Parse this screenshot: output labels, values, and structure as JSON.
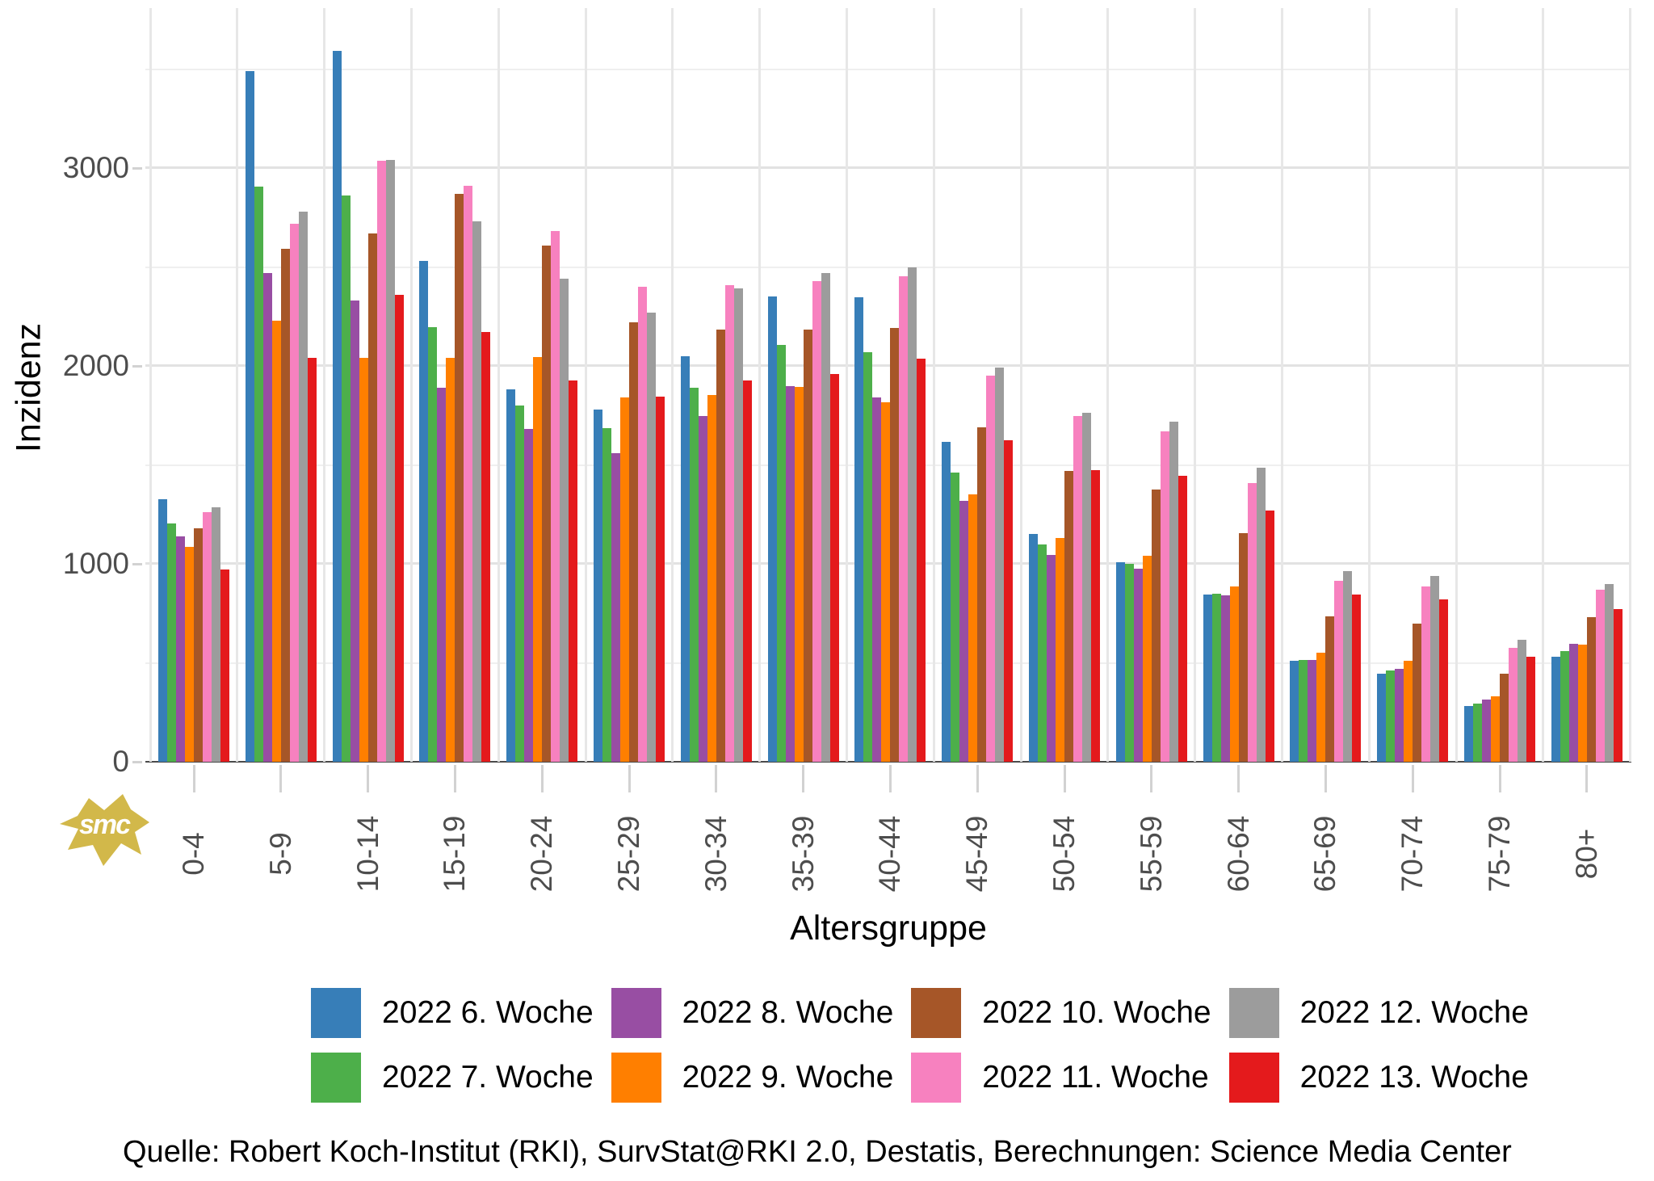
{
  "chart_data": {
    "type": "bar",
    "title": "",
    "xlabel": "Altersgruppe",
    "ylabel": "Inzidenz",
    "ylim": [
      0,
      3800
    ],
    "y_ticks": [
      0,
      1000,
      2000,
      3000
    ],
    "grid": "horizontal major every 1000, minor every 500, vertical lines between groups",
    "legend_position": "bottom, 4 columns x 2 rows",
    "categories": [
      "0-4",
      "5-9",
      "10-14",
      "15-19",
      "20-24",
      "25-29",
      "30-34",
      "35-39",
      "40-44",
      "45-49",
      "50-54",
      "55-59",
      "60-64",
      "65-69",
      "70-74",
      "75-79",
      "80+"
    ],
    "series": [
      {
        "name": "2022 6. Woche",
        "color": "#377EB8",
        "values": [
          1325,
          3490,
          3590,
          2530,
          1880,
          1780,
          2050,
          2350,
          2345,
          1615,
          1150,
          1010,
          845,
          510,
          445,
          280,
          530
        ]
      },
      {
        "name": "2022 7. Woche",
        "color": "#4DAF4A",
        "values": [
          1205,
          2905,
          2860,
          2195,
          1800,
          1685,
          1890,
          2105,
          2070,
          1460,
          1100,
          1000,
          850,
          515,
          460,
          295,
          560
        ]
      },
      {
        "name": "2022 8. Woche",
        "color": "#984EA3",
        "values": [
          1140,
          2470,
          2330,
          1890,
          1680,
          1560,
          1745,
          1900,
          1840,
          1320,
          1045,
          975,
          840,
          515,
          470,
          315,
          595
        ]
      },
      {
        "name": "2022 9. Woche",
        "color": "#FF7F00",
        "values": [
          1085,
          2230,
          2040,
          2040,
          2045,
          1840,
          1855,
          1895,
          1815,
          1350,
          1130,
          1040,
          885,
          550,
          510,
          330,
          590
        ]
      },
      {
        "name": "2022 10. Woche",
        "color": "#A65628",
        "values": [
          1180,
          2590,
          2670,
          2870,
          2610,
          2220,
          2185,
          2185,
          2190,
          1690,
          1470,
          1375,
          1155,
          735,
          700,
          445,
          730
        ]
      },
      {
        "name": "2022 11. Woche",
        "color": "#F781BF",
        "values": [
          1260,
          2720,
          3035,
          2910,
          2680,
          2400,
          2410,
          2430,
          2455,
          1950,
          1745,
          1670,
          1410,
          915,
          885,
          575,
          870
        ]
      },
      {
        "name": "2022 12. Woche",
        "color": "#9C9C9C",
        "values": [
          1285,
          2780,
          3040,
          2730,
          2440,
          2270,
          2390,
          2470,
          2500,
          1990,
          1765,
          1720,
          1485,
          965,
          940,
          615,
          900
        ]
      },
      {
        "name": "2022 13. Woche",
        "color": "#E41A1C",
        "values": [
          970,
          2040,
          2360,
          2170,
          1925,
          1845,
          1925,
          1960,
          2035,
          1625,
          1475,
          1445,
          1270,
          845,
          820,
          530,
          770
        ]
      }
    ]
  },
  "footer": {
    "source_text": "Quelle: Robert Koch-Institut (RKI), SurvStat@RKI 2.0, Destatis, Berechnungen: Science Media Center"
  },
  "logo": {
    "text": "smc",
    "color": "#d2b84a"
  }
}
